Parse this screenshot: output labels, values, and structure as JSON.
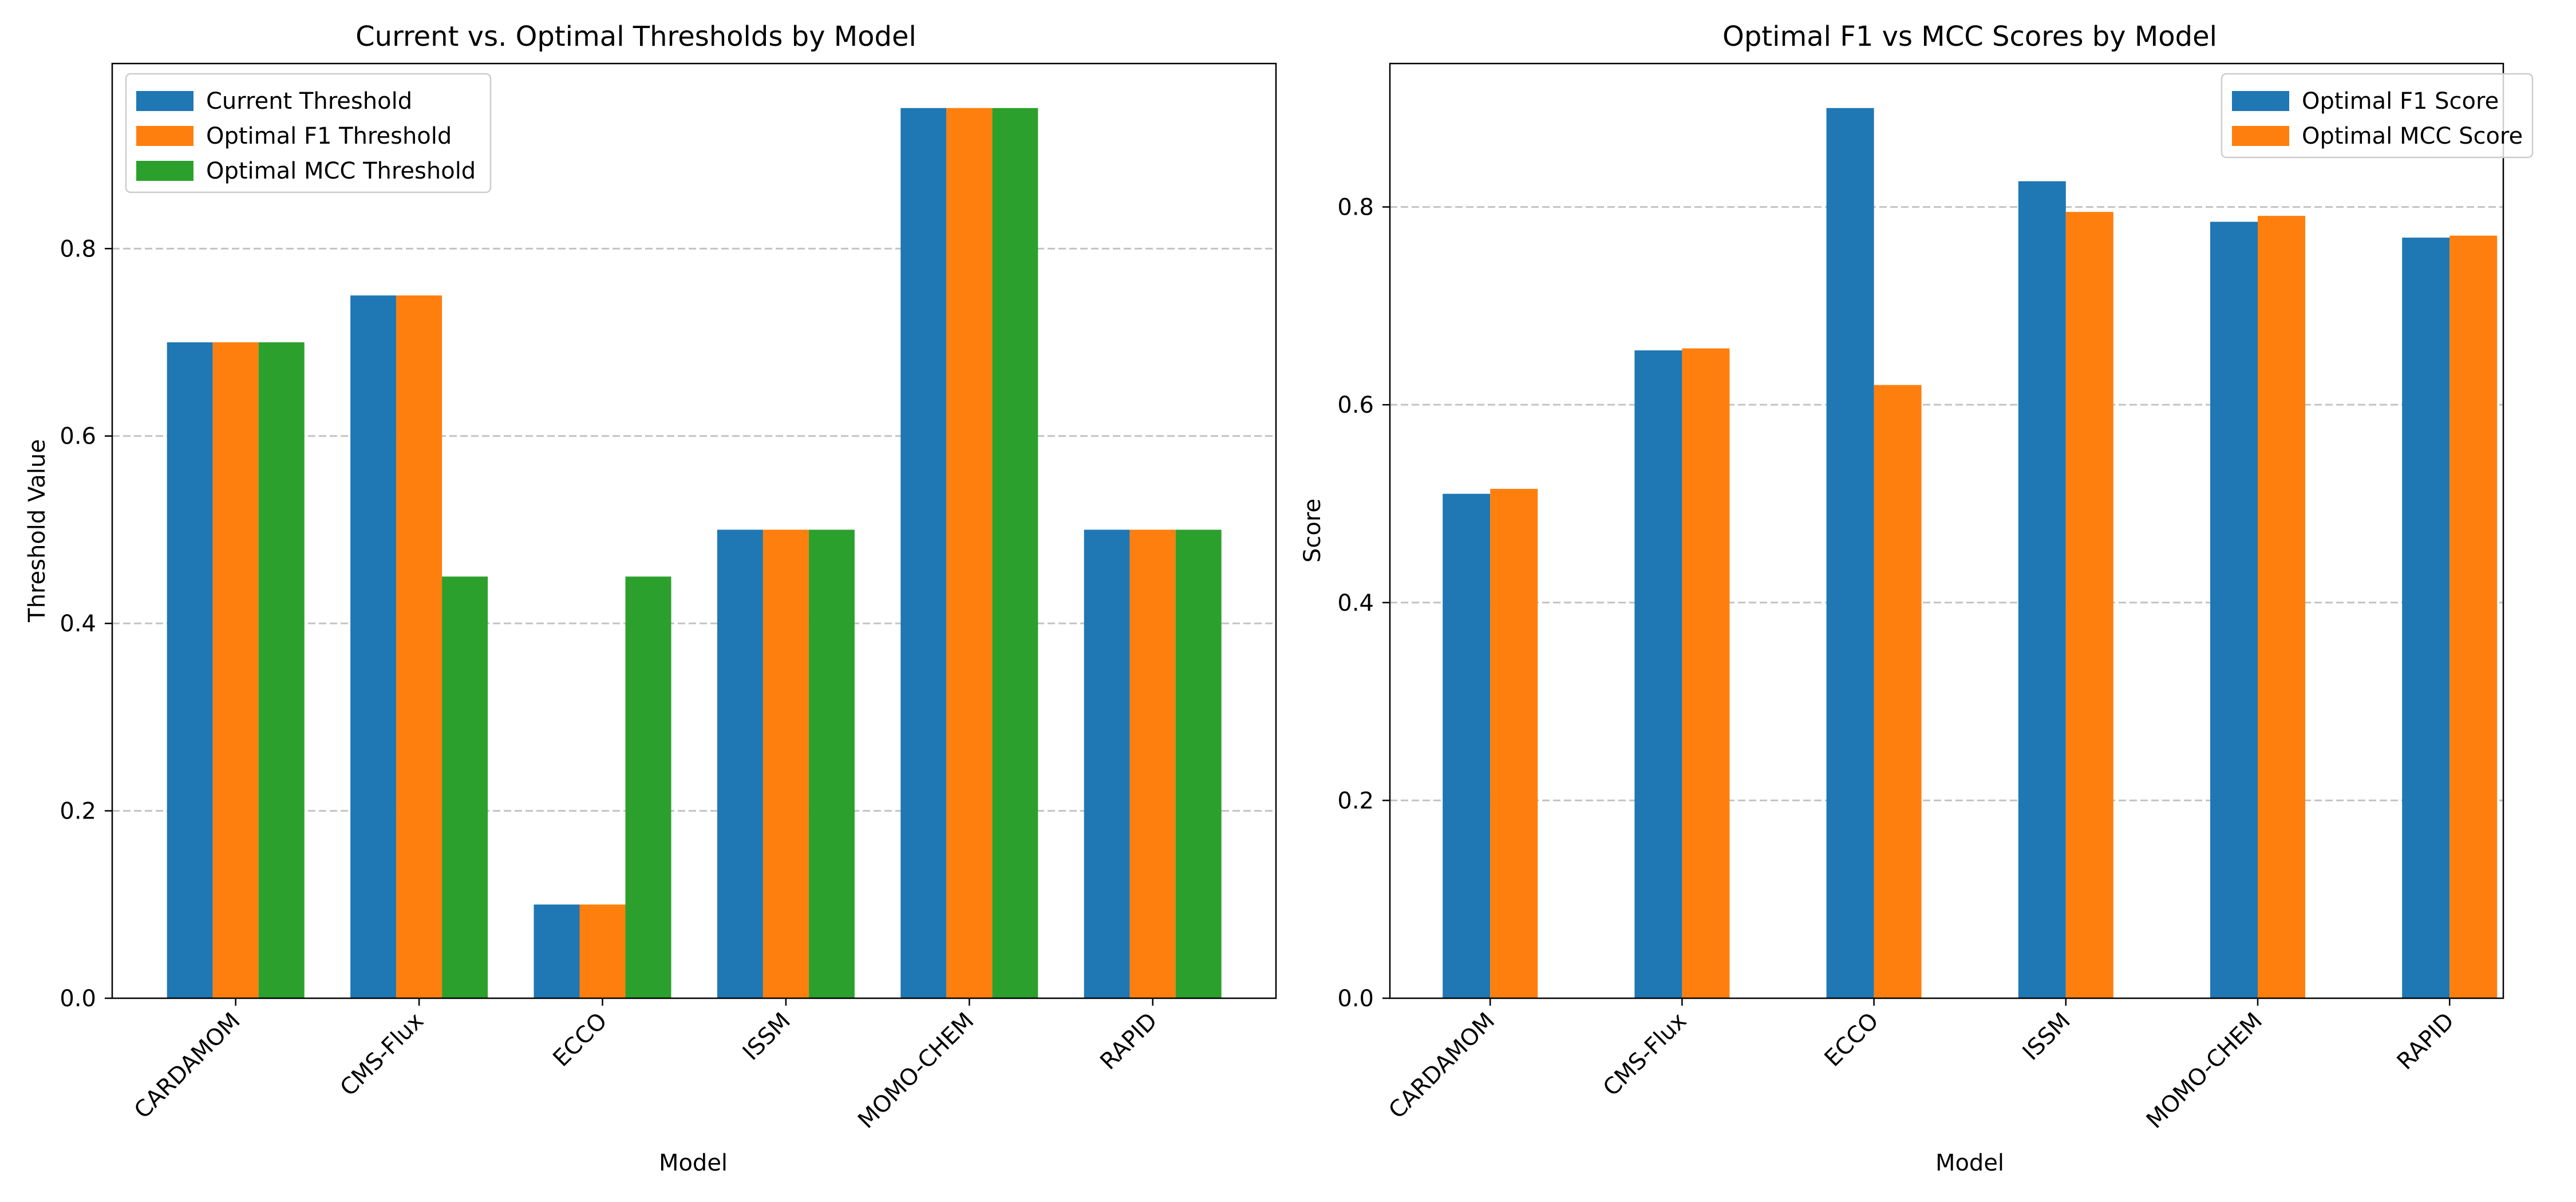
{
  "chart_data": [
    {
      "type": "bar",
      "title": "Current vs. Optimal Thresholds by Model",
      "xlabel": "Model",
      "ylabel": "Threshold Value",
      "categories": [
        "CARDAMOM",
        "CMS-Flux",
        "ECCO",
        "ISSM",
        "MOMO-CHEM",
        "RAPID"
      ],
      "series": [
        {
          "name": "Current Threshold",
          "color": "#1f77b4",
          "values": [
            0.7,
            0.75,
            0.1,
            0.5,
            0.95,
            0.5
          ]
        },
        {
          "name": "Optimal F1 Threshold",
          "color": "#ff7f0e",
          "values": [
            0.7,
            0.75,
            0.1,
            0.5,
            0.95,
            0.5
          ]
        },
        {
          "name": "Optimal MCC Threshold",
          "color": "#2ca02c",
          "values": [
            0.7,
            0.45,
            0.45,
            0.5,
            0.95,
            0.5
          ]
        }
      ],
      "ylim": [
        0,
        0.9975
      ],
      "yticks": [
        0.0,
        0.2,
        0.4,
        0.6,
        0.8
      ],
      "ytick_labels": [
        "0.0",
        "0.2",
        "0.4",
        "0.6",
        "0.8"
      ],
      "grid": "y-dashed",
      "legend_position": "top-left"
    },
    {
      "type": "bar",
      "title": "Optimal F1 vs MCC Scores by Model",
      "xlabel": "Model",
      "ylabel": "Score",
      "categories": [
        "CARDAMOM",
        "CMS-Flux",
        "ECCO",
        "ISSM",
        "MOMO-CHEM",
        "RAPID"
      ],
      "series": [
        {
          "name": "Optimal F1 Score",
          "color": "#1f77b4",
          "values": [
            0.51,
            0.655,
            0.9,
            0.826,
            0.785,
            0.769
          ]
        },
        {
          "name": "Optimal MCC Score",
          "color": "#ff7f0e",
          "values": [
            0.515,
            0.657,
            0.62,
            0.795,
            0.791,
            0.771
          ]
        }
      ],
      "ylim": [
        0,
        0.945
      ],
      "yticks": [
        0.0,
        0.2,
        0.4,
        0.6,
        0.8
      ],
      "ytick_labels": [
        "0.0",
        "0.2",
        "0.4",
        "0.6",
        "0.8"
      ],
      "grid": "y-dashed",
      "legend_position": "top-right"
    }
  ]
}
